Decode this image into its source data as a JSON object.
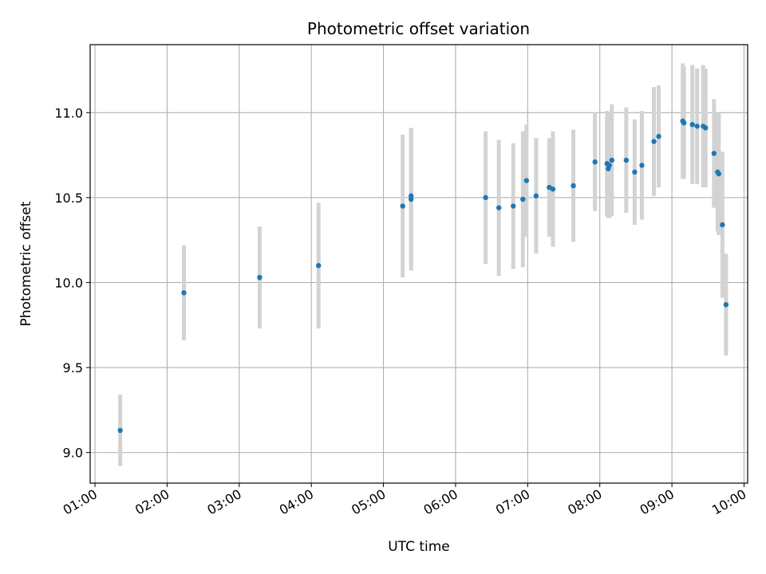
{
  "chart_data": {
    "type": "scatter",
    "title": "Photometric offset variation",
    "xlabel": "UTC time",
    "ylabel": "Photometric offset",
    "x_tick_labels": [
      "01:00",
      "02:00",
      "03:00",
      "04:00",
      "05:00",
      "06:00",
      "07:00",
      "08:00",
      "09:00",
      "10:00"
    ],
    "y_tick_labels": [
      "9.0",
      "9.5",
      "10.0",
      "10.5",
      "11.0"
    ],
    "y_ticks": [
      9.0,
      9.5,
      10.0,
      10.5,
      11.0
    ],
    "xlim": [
      "00:56",
      "10:03"
    ],
    "ylim": [
      8.82,
      11.4
    ],
    "grid": true,
    "colors": {
      "marker": "#1f77b4",
      "errorbar": "#d3d3d3",
      "grid": "#b0b0b0"
    },
    "points": [
      {
        "t": "01:21",
        "y": 9.13,
        "err": 0.21
      },
      {
        "t": "02:14",
        "y": 9.94,
        "err": 0.28
      },
      {
        "t": "03:17",
        "y": 10.03,
        "err": 0.3
      },
      {
        "t": "04:06",
        "y": 10.1,
        "err": 0.37
      },
      {
        "t": "05:16",
        "y": 10.45,
        "err": 0.42
      },
      {
        "t": "05:23",
        "y": 10.49,
        "err": 0.42
      },
      {
        "t": "05:23",
        "y": 10.51,
        "err": 0.4
      },
      {
        "t": "06:25",
        "y": 10.5,
        "err": 0.39
      },
      {
        "t": "06:36",
        "y": 10.44,
        "err": 0.4
      },
      {
        "t": "06:48",
        "y": 10.45,
        "err": 0.37
      },
      {
        "t": "06:56",
        "y": 10.49,
        "err": 0.4
      },
      {
        "t": "06:59",
        "y": 10.6,
        "err": 0.33
      },
      {
        "t": "07:07",
        "y": 10.51,
        "err": 0.34
      },
      {
        "t": "07:18",
        "y": 10.56,
        "err": 0.29
      },
      {
        "t": "07:21",
        "y": 10.55,
        "err": 0.34
      },
      {
        "t": "07:38",
        "y": 10.57,
        "err": 0.33
      },
      {
        "t": "07:56",
        "y": 10.71,
        "err": 0.29
      },
      {
        "t": "08:06",
        "y": 10.7,
        "err": 0.31
      },
      {
        "t": "08:07",
        "y": 10.67,
        "err": 0.29
      },
      {
        "t": "08:08",
        "y": 10.69,
        "err": 0.31
      },
      {
        "t": "08:10",
        "y": 10.72,
        "err": 0.33
      },
      {
        "t": "08:22",
        "y": 10.72,
        "err": 0.31
      },
      {
        "t": "08:29",
        "y": 10.65,
        "err": 0.31
      },
      {
        "t": "08:35",
        "y": 10.69,
        "err": 0.32
      },
      {
        "t": "08:45",
        "y": 10.83,
        "err": 0.32
      },
      {
        "t": "08:49",
        "y": 10.86,
        "err": 0.3
      },
      {
        "t": "09:09",
        "y": 10.95,
        "err": 0.34
      },
      {
        "t": "09:10",
        "y": 10.94,
        "err": 0.33
      },
      {
        "t": "09:17",
        "y": 10.93,
        "err": 0.35
      },
      {
        "t": "09:21",
        "y": 10.92,
        "err": 0.34
      },
      {
        "t": "09:26",
        "y": 10.92,
        "err": 0.36
      },
      {
        "t": "09:28",
        "y": 10.91,
        "err": 0.35
      },
      {
        "t": "09:35",
        "y": 10.76,
        "err": 0.32
      },
      {
        "t": "09:38",
        "y": 10.65,
        "err": 0.35
      },
      {
        "t": "09:39",
        "y": 10.64,
        "err": 0.36
      },
      {
        "t": "09:42",
        "y": 10.34,
        "err": 0.43
      },
      {
        "t": "09:45",
        "y": 9.87,
        "err": 0.3
      }
    ]
  }
}
